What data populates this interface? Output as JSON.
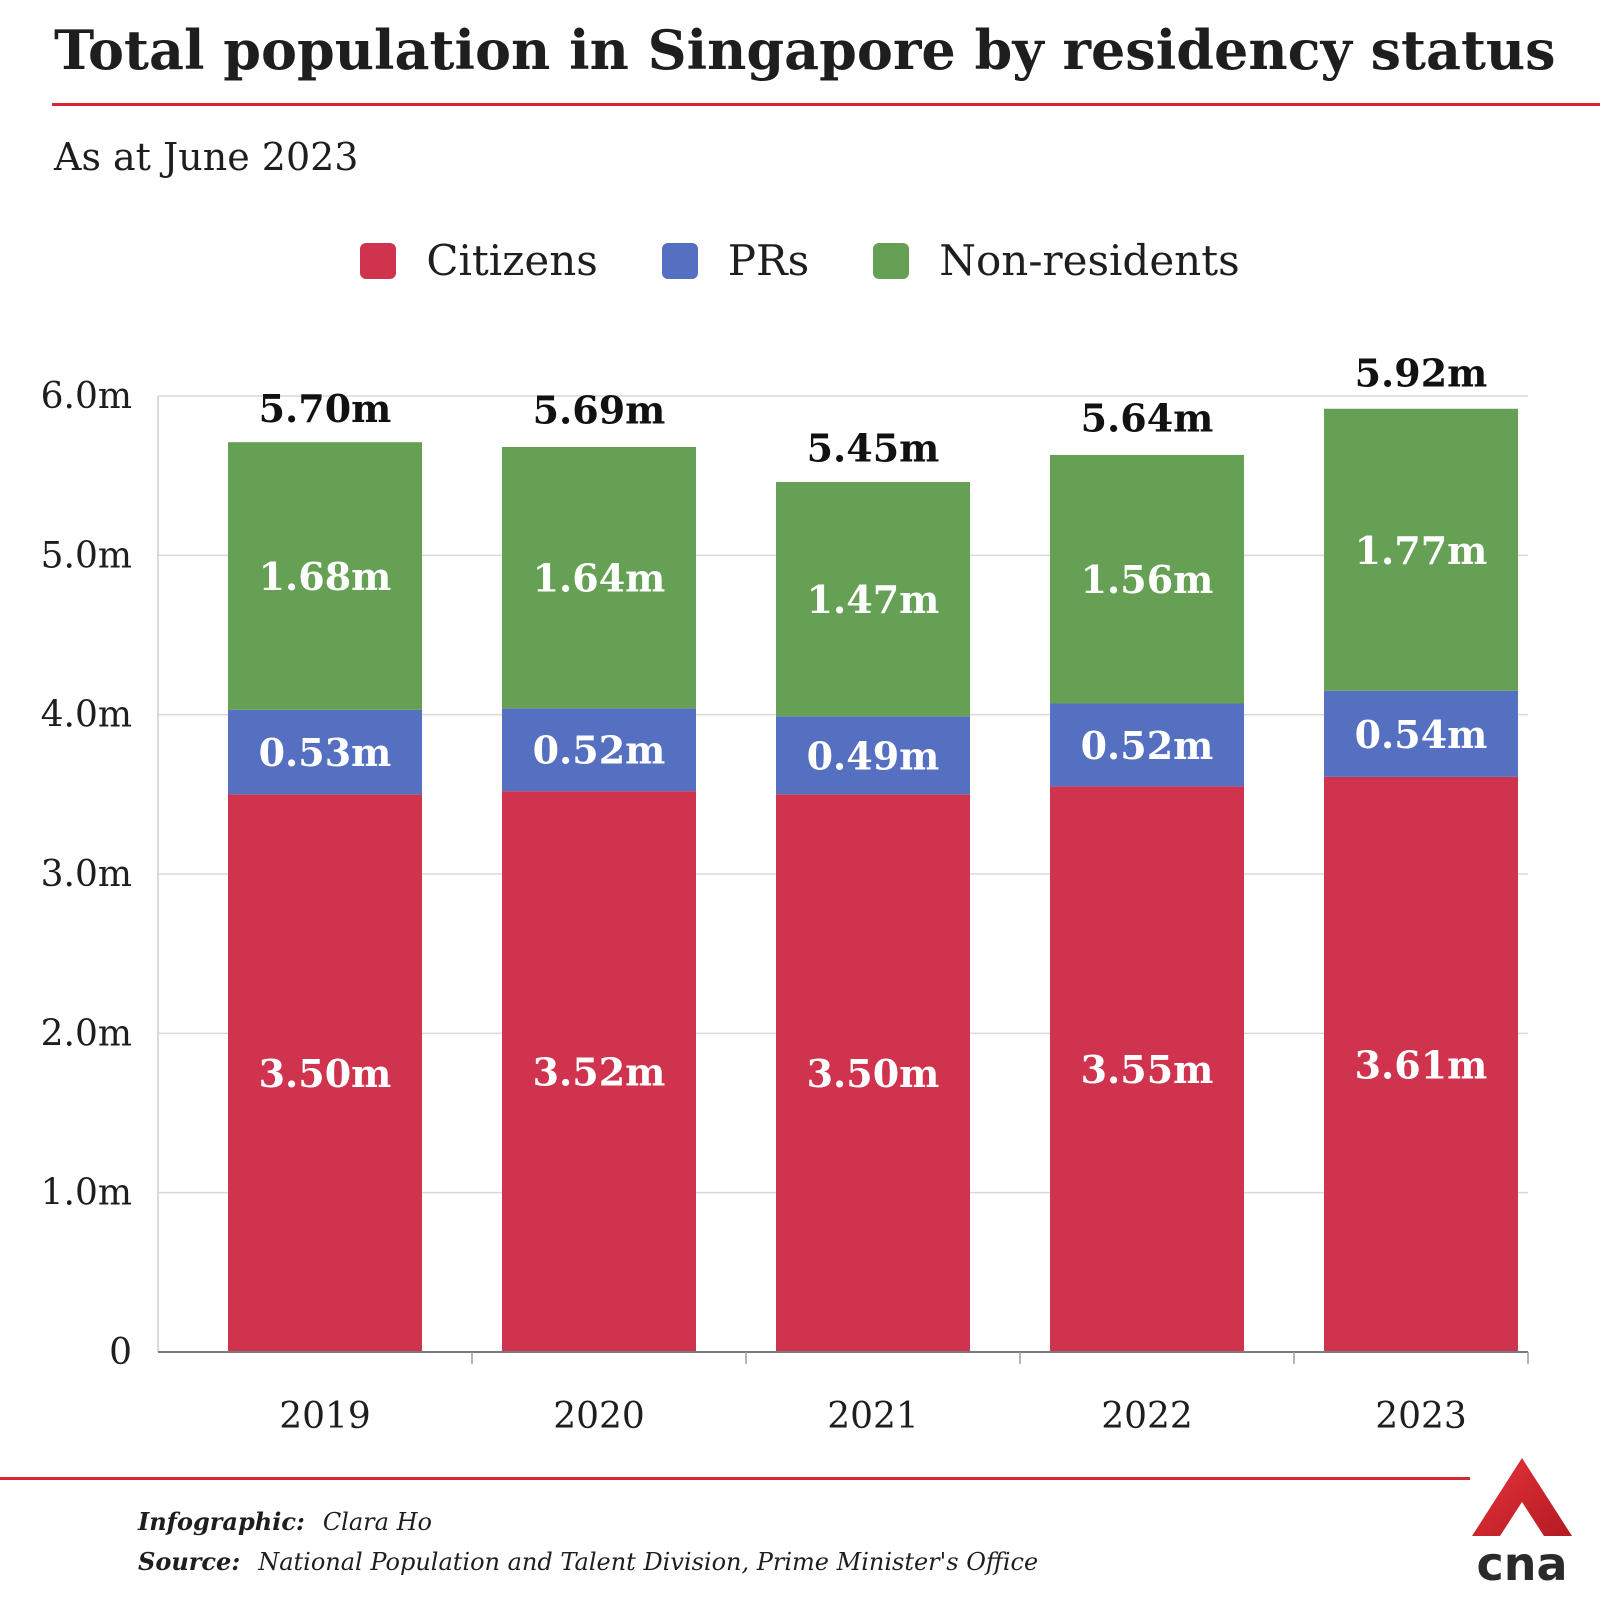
{
  "header": {
    "title": "Total population in Singapore by residency status",
    "subtitle": "As at June 2023"
  },
  "legend": [
    {
      "label": "Citizens",
      "color": "#d0334e"
    },
    {
      "label": "PRs",
      "color": "#5570c1"
    },
    {
      "label": "Non-residents",
      "color": "#66a055"
    }
  ],
  "chart_data": {
    "type": "bar",
    "stacked": true,
    "categories": [
      "2019",
      "2020",
      "2021",
      "2022",
      "2023"
    ],
    "series": [
      {
        "name": "Citizens",
        "color": "#d0334e",
        "values": [
          3.5,
          3.52,
          3.5,
          3.55,
          3.61
        ],
        "labels": [
          "3.50m",
          "3.52m",
          "3.50m",
          "3.55m",
          "3.61m"
        ]
      },
      {
        "name": "PRs",
        "color": "#5570c1",
        "values": [
          0.53,
          0.52,
          0.49,
          0.52,
          0.54
        ],
        "labels": [
          "0.53m",
          "0.52m",
          "0.49m",
          "0.52m",
          "0.54m"
        ]
      },
      {
        "name": "Non-residents",
        "color": "#66a055",
        "values": [
          1.68,
          1.64,
          1.47,
          1.56,
          1.77
        ],
        "labels": [
          "1.68m",
          "1.64m",
          "1.47m",
          "1.56m",
          "1.77m"
        ]
      }
    ],
    "totals": [
      5.7,
      5.69,
      5.45,
      5.64,
      5.92
    ],
    "total_labels": [
      "5.70m",
      "5.69m",
      "5.45m",
      "5.64m",
      "5.92m"
    ],
    "ylim": [
      0,
      6.0
    ],
    "yticks": [
      0,
      1.0,
      2.0,
      3.0,
      4.0,
      5.0,
      6.0
    ],
    "ytick_labels": [
      "0",
      "1.0m",
      "2.0m",
      "3.0m",
      "4.0m",
      "5.0m",
      "6.0m"
    ],
    "grid": true,
    "legend_position": "top-center"
  },
  "footer": {
    "infographic_label": "Infographic:",
    "infographic_value": "Clara Ho",
    "source_label": "Source:",
    "source_value": "National Population and Talent Division, Prime Minister's Office",
    "logo_text": "cna"
  }
}
